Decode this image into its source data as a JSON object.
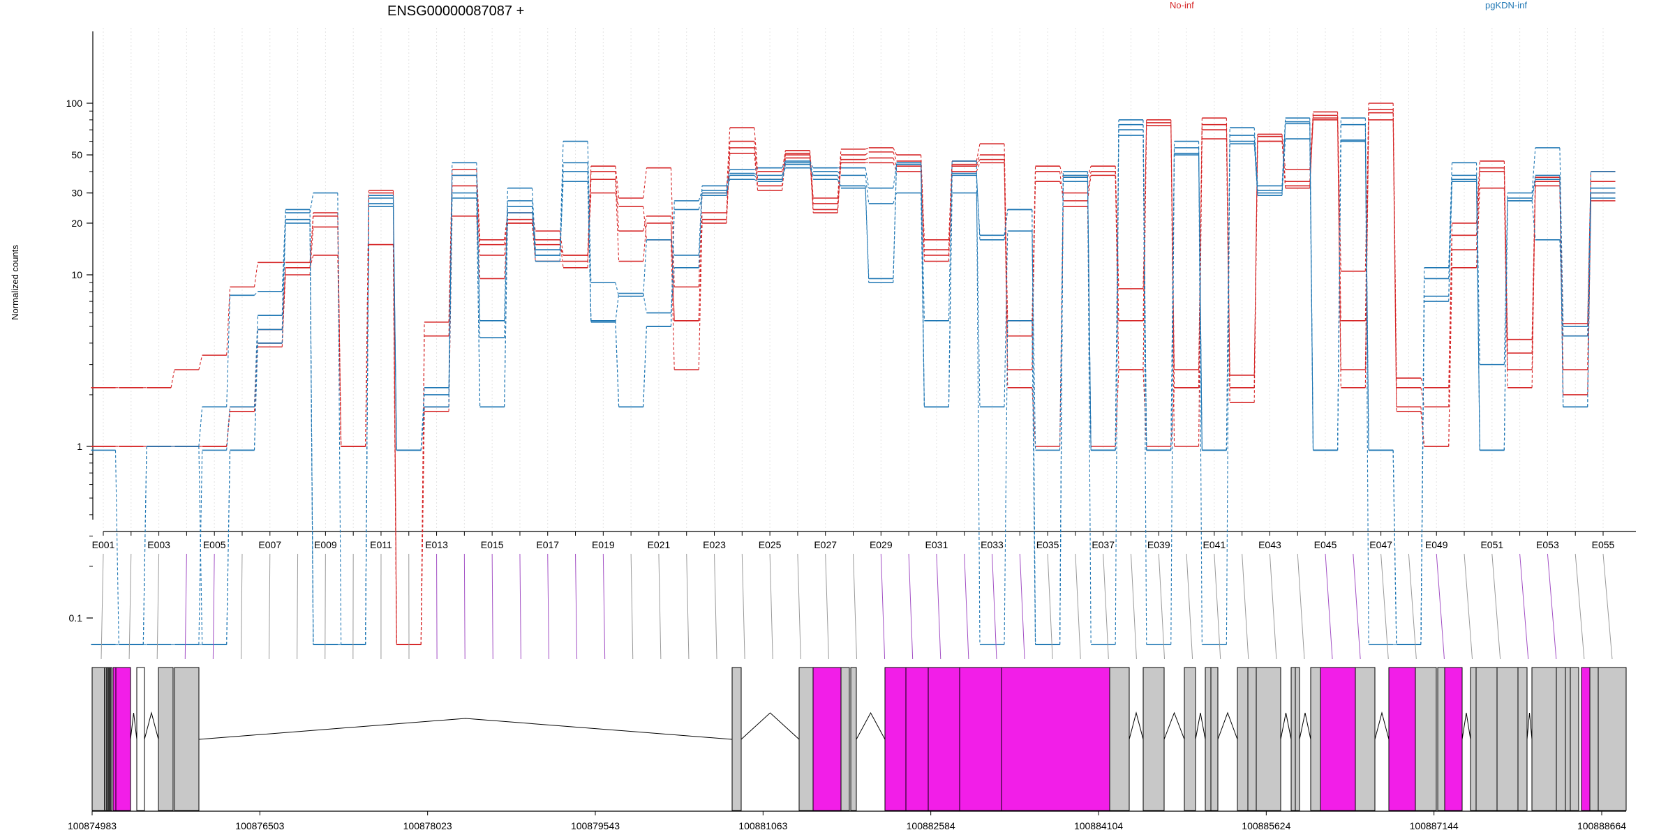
{
  "chart_data": {
    "type": "line",
    "title": "ENSG00000087087 +",
    "ylabel": "Normalized counts",
    "y_scale": "log",
    "yticks": [
      0.1,
      1,
      10,
      20,
      30,
      50,
      100
    ],
    "ytick_labels": [
      "0.1",
      "1",
      "10",
      "20",
      "30",
      "50",
      "100"
    ],
    "legend": [
      {
        "name": "No-inf",
        "color": "#d62728"
      },
      {
        "name": "pgKDN-inf",
        "color": "#1f77b4"
      }
    ],
    "exon_labels": [
      "E001",
      "E003",
      "E005",
      "E007",
      "E009",
      "E011",
      "E013",
      "E015",
      "E017",
      "E019",
      "E021",
      "E023",
      "E025",
      "E027",
      "E029",
      "E031",
      "E033",
      "E035",
      "E037",
      "E039",
      "E041",
      "E043",
      "E045",
      "E047",
      "E049",
      "E051",
      "E053",
      "E055"
    ],
    "exon_ids": [
      "E001",
      "E002",
      "E003",
      "E004",
      "E005",
      "E006",
      "E007",
      "E008",
      "E009",
      "E010",
      "E011",
      "E012",
      "E013",
      "E014",
      "E015",
      "E016",
      "E017",
      "E018",
      "E019",
      "E020",
      "E021",
      "E022",
      "E023",
      "E024",
      "E025",
      "E026",
      "E027",
      "E028",
      "E029",
      "E030",
      "E031",
      "E032",
      "E033",
      "E034",
      "E035",
      "E036",
      "E037",
      "E038",
      "E039",
      "E040",
      "E041",
      "E042",
      "E043",
      "E044",
      "E045",
      "E046",
      "E047",
      "E048",
      "E049",
      "E050",
      "E051",
      "E052",
      "E053",
      "E054",
      "E055"
    ],
    "series": [
      {
        "name": "No-inf",
        "color": "#d62728",
        "values": [
          2.2,
          2.2,
          2.2,
          2.8,
          3.4,
          8.5,
          11.8,
          11.8,
          22.0,
          1.0,
          31.0,
          0.07,
          5.3,
          41.0,
          16.0,
          23.0,
          18.0,
          13.0,
          43.0,
          28.0,
          42.0,
          8.5,
          30.0,
          72.0,
          40.0,
          53.0,
          28.0,
          54.0,
          55.0,
          50.0,
          16.0,
          46.0,
          58.0,
          5.4,
          43.0,
          37.0,
          43.0,
          8.3,
          80.0,
          2.8,
          82.0,
          2.6,
          66.0,
          41.0,
          89.0,
          10.5,
          100.0,
          2.5,
          2.2,
          20.0,
          46.0,
          4.2,
          37.0,
          5.2,
          40.0
        ]
      },
      {
        "name": "No-inf",
        "color": "#d62728",
        "values": [
          1.0,
          1.0,
          1.0,
          1.0,
          1.0,
          1.7,
          4.8,
          11.0,
          23.0,
          1.0,
          30.0,
          0.07,
          4.4,
          38.0,
          15.0,
          21.0,
          16.0,
          11.0,
          40.0,
          18.0,
          22.0,
          5.4,
          23.0,
          60.0,
          36.0,
          51.0,
          26.0,
          50.0,
          52.0,
          46.0,
          14.0,
          44.0,
          50.0,
          4.4,
          35.0,
          30.0,
          40.0,
          5.4,
          77.0,
          2.2,
          75.0,
          2.2,
          64.0,
          35.0,
          85.0,
          5.4,
          92.0,
          2.2,
          1.7,
          17.0,
          42.0,
          3.5,
          35.0,
          4.4,
          35.0
        ]
      },
      {
        "name": "No-inf",
        "color": "#d62728",
        "values": [
          1.0,
          1.0,
          1.0,
          1.0,
          1.0,
          1.6,
          4.0,
          10.0,
          19.0,
          1.0,
          15.0,
          0.07,
          1.7,
          33.0,
          13.0,
          20.0,
          15.0,
          13.0,
          36.0,
          12.0,
          20.0,
          5.4,
          20.0,
          55.0,
          33.0,
          50.0,
          24.0,
          47.0,
          48.0,
          43.0,
          13.0,
          43.0,
          47.0,
          2.8,
          40.0,
          27.0,
          38.0,
          2.8,
          74.0,
          1.0,
          70.0,
          1.8,
          60.0,
          33.0,
          82.0,
          2.8,
          88.0,
          1.7,
          1.0,
          14.0,
          40.0,
          2.8,
          33.0,
          2.8,
          30.0
        ]
      },
      {
        "name": "No-inf",
        "color": "#d62728",
        "values": [
          1.0,
          1.0,
          1.0,
          1.0,
          1.0,
          1.6,
          3.8,
          11.0,
          13.0,
          1.0,
          15.0,
          0.07,
          1.6,
          22.0,
          9.5,
          20.0,
          12.0,
          12.0,
          30.0,
          25.0,
          16.0,
          2.8,
          21.0,
          51.0,
          31.0,
          48.0,
          23.0,
          45.0,
          45.0,
          40.0,
          12.0,
          40.0,
          45.0,
          2.2,
          1.0,
          25.0,
          1.0,
          2.8,
          1.0,
          2.2,
          62.0,
          2.2,
          60.0,
          32.0,
          80.0,
          2.2,
          80.0,
          1.6,
          1.0,
          11.0,
          32.0,
          2.2,
          35.0,
          2.0,
          27.0
        ]
      },
      {
        "name": "pgKDN-inf",
        "color": "#1f77b4",
        "values": [
          0.95,
          0.07,
          1.0,
          1.0,
          1.7,
          7.6,
          8.0,
          23.0,
          30.0,
          0.07,
          29.0,
          0.95,
          2.2,
          45.0,
          5.4,
          32.0,
          14.0,
          60.0,
          9.0,
          7.5,
          16.0,
          13.0,
          33.0,
          41.0,
          42.0,
          46.0,
          42.0,
          42.0,
          32.0,
          44.0,
          5.4,
          46.0,
          0.07,
          5.4,
          0.07,
          40.0,
          0.07,
          80.0,
          0.07,
          60.0,
          0.07,
          72.0,
          33.0,
          82.0,
          0.95,
          82.0,
          0.07,
          0.07,
          11.0,
          45.0,
          3.0,
          30.0,
          55.0,
          5.0,
          40.0
        ]
      },
      {
        "name": "pgKDN-inf",
        "color": "#1f77b4",
        "values": [
          0.07,
          0.07,
          0.07,
          0.07,
          0.95,
          1.7,
          5.8,
          24.0,
          0.07,
          0.07,
          28.0,
          0.95,
          2.0,
          38.0,
          4.3,
          27.0,
          13.0,
          45.0,
          5.3,
          7.8,
          6.0,
          11.0,
          30.0,
          39.0,
          38.0,
          42.0,
          40.0,
          38.0,
          26.0,
          30.0,
          1.7,
          30.0,
          1.7,
          18.0,
          0.95,
          35.0,
          0.95,
          75.0,
          0.95,
          51.0,
          0.95,
          65.0,
          31.0,
          78.0,
          0.95,
          75.0,
          0.95,
          0.07,
          9.5,
          38.0,
          0.95,
          27.0,
          16.0,
          4.4,
          32.0
        ]
      },
      {
        "name": "pgKDN-inf",
        "color": "#1f77b4",
        "values": [
          0.07,
          0.07,
          0.07,
          0.07,
          0.07,
          0.95,
          4.8,
          21.0,
          0.07,
          0.07,
          26.0,
          0.95,
          1.7,
          30.0,
          1.7,
          25.0,
          12.0,
          40.0,
          5.4,
          1.7,
          5.0,
          24.0,
          29.0,
          38.0,
          36.0,
          45.0,
          38.0,
          33.0,
          9.5,
          45.0,
          1.7,
          39.0,
          16.0,
          24.0,
          0.07,
          38.0,
          0.95,
          70.0,
          0.95,
          55.0,
          0.95,
          60.0,
          30.0,
          76.0,
          0.95,
          61.0,
          0.95,
          0.07,
          7.5,
          36.0,
          0.95,
          28.0,
          38.0,
          1.7,
          30.0
        ]
      },
      {
        "name": "pgKDN-inf",
        "color": "#1f77b4",
        "values": [
          0.07,
          0.07,
          1.0,
          1.0,
          0.07,
          0.95,
          4.0,
          20.0,
          0.07,
          0.07,
          25.0,
          0.95,
          1.7,
          28.0,
          1.7,
          23.0,
          13.0,
          35.0,
          5.4,
          1.7,
          5.0,
          27.0,
          31.0,
          36.0,
          35.0,
          44.0,
          36.0,
          32.0,
          9.0,
          44.0,
          1.7,
          38.0,
          17.0,
          24.0,
          0.07,
          37.0,
          0.95,
          65.0,
          0.95,
          50.0,
          0.95,
          58.0,
          29.0,
          62.0,
          0.95,
          60.0,
          0.95,
          0.07,
          7.0,
          35.0,
          0.95,
          27.0,
          36.0,
          1.7,
          28.0
        ]
      }
    ],
    "exon_track": {
      "axis_ticks": [
        "100874983",
        "100876503",
        "100878023",
        "100879543",
        "100881063",
        "100882584",
        "100884104",
        "100885624",
        "100887144",
        "100888664"
      ]
    }
  }
}
